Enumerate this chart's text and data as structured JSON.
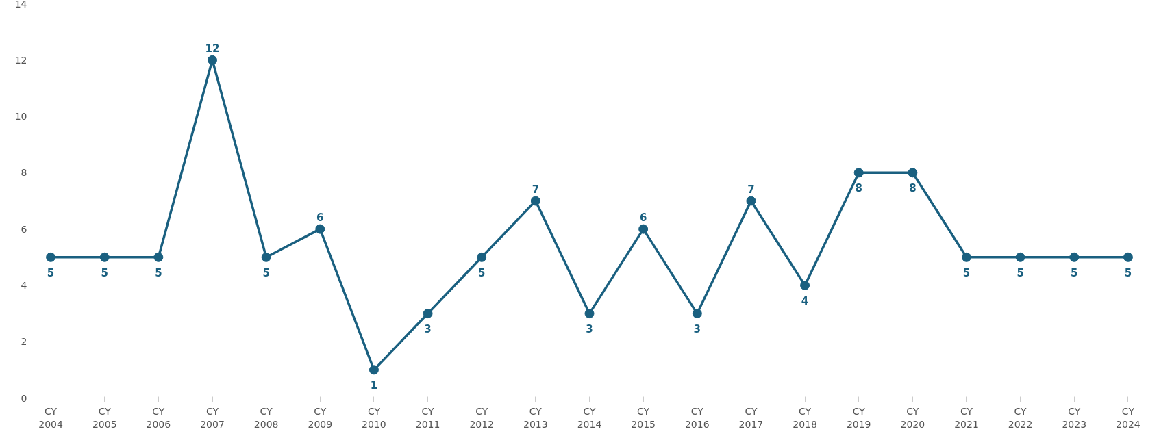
{
  "chart_data": {
    "type": "line",
    "categories": [
      "CY 2004",
      "CY 2005",
      "CY 2006",
      "CY 2007",
      "CY 2008",
      "CY 2009",
      "CY 2010",
      "CY 2011",
      "CY 2012",
      "CY 2013",
      "CY 2014",
      "CY 2015",
      "CY 2016",
      "CY 2017",
      "CY 2018",
      "CY 2019",
      "CY 2020",
      "CY 2021",
      "CY 2022",
      "CY 2023",
      "CY 2024"
    ],
    "series": [
      {
        "color": "#1a6080",
        "values": [
          5,
          5,
          5,
          12,
          5,
          6,
          1,
          3,
          5,
          7,
          3,
          6,
          3,
          7,
          4,
          8,
          8,
          5,
          5,
          5,
          5
        ]
      }
    ],
    "ylim": [
      0,
      14
    ],
    "yticks": [
      0,
      2,
      4,
      6,
      8,
      10,
      12,
      14
    ],
    "grid": false,
    "marker": "circle",
    "line_style": "solid",
    "data_labels": true
  }
}
